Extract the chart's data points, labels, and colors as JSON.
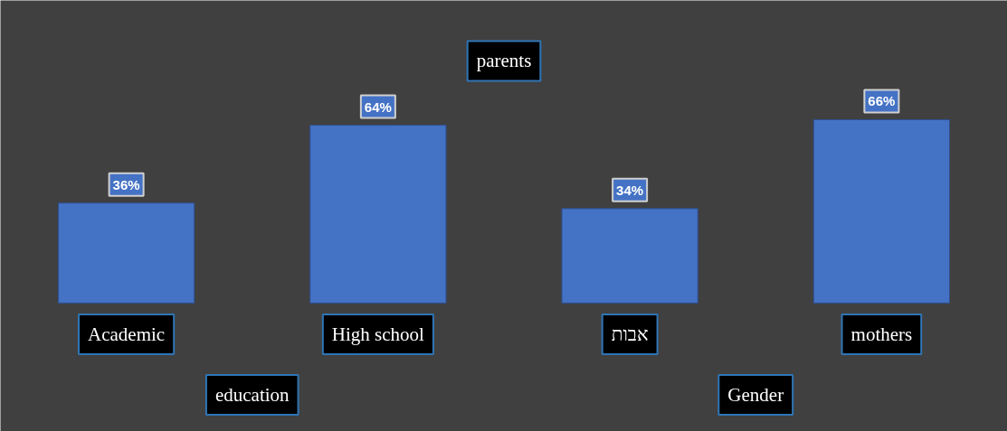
{
  "chart_data": {
    "type": "bar",
    "title": "parents",
    "categories": [
      "Academic",
      "High school",
      "אבות",
      "mothers"
    ],
    "values": [
      36,
      64,
      34,
      66
    ],
    "color": "#4472c4",
    "value_labels": [
      "36%",
      "64%",
      "34%",
      "66%"
    ],
    "annotations": [
      "education",
      "Gender"
    ]
  }
}
